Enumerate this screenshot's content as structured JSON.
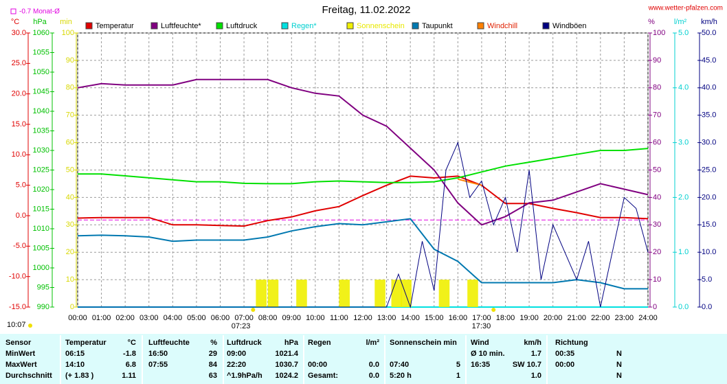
{
  "chart_data": {
    "type": "line",
    "title": "Freitag, 11.02.2022",
    "site": "www.wetter-pfalzen.com",
    "update_time": "10:07",
    "reference": {
      "label": "-0.7 Monat-Ø",
      "value": -0.7,
      "axis": "temp",
      "color": "#e000e0"
    },
    "sunrise": {
      "value": 7.383,
      "label": "07:23"
    },
    "sunset": {
      "value": 17.5,
      "label": "17:30"
    },
    "grid": true,
    "xlim": [
      0,
      24
    ],
    "xticks": [
      {
        "value": 0,
        "label": "00:00"
      },
      {
        "value": 1,
        "label": "01:00"
      },
      {
        "value": 2,
        "label": "02:00"
      },
      {
        "value": 3,
        "label": "03:00"
      },
      {
        "value": 4,
        "label": "04:00"
      },
      {
        "value": 5,
        "label": "05:00"
      },
      {
        "value": 6,
        "label": "06:00"
      },
      {
        "value": 7,
        "label": "07:00"
      },
      {
        "value": 8,
        "label": "08:00"
      },
      {
        "value": 9,
        "label": "09:00"
      },
      {
        "value": 10,
        "label": "10:00"
      },
      {
        "value": 11,
        "label": "11:00"
      },
      {
        "value": 12,
        "label": "12:00"
      },
      {
        "value": 13,
        "label": "13:00"
      },
      {
        "value": 14,
        "label": "14:00"
      },
      {
        "value": 15,
        "label": "15:00"
      },
      {
        "value": 16,
        "label": "16:00"
      },
      {
        "value": 17,
        "label": "17:00"
      },
      {
        "value": 18,
        "label": "18:00"
      },
      {
        "value": 19,
        "label": "19:00"
      },
      {
        "value": 20,
        "label": "20:00"
      },
      {
        "value": 21,
        "label": "21:00"
      },
      {
        "value": 22,
        "label": "22:00"
      },
      {
        "value": 23,
        "label": "23:00"
      },
      {
        "value": 24,
        "label": "24:00"
      }
    ],
    "axes": {
      "temp": {
        "unit": "°C",
        "color": "#e00000",
        "lim": [
          -15,
          30
        ],
        "ticks": [
          {
            "value": 30,
            "label": "30.0"
          },
          {
            "value": 25,
            "label": "25.0"
          },
          {
            "value": 20,
            "label": "20.0"
          },
          {
            "value": 15,
            "label": "15.0"
          },
          {
            "value": 10,
            "label": "10.0"
          },
          {
            "value": 5,
            "label": "5.0"
          },
          {
            "value": 0,
            "label": "0.0"
          },
          {
            "value": -5,
            "label": "-5.0"
          },
          {
            "value": -10,
            "label": "-10.0"
          },
          {
            "value": -15,
            "label": "-15.0"
          }
        ]
      },
      "pressure": {
        "unit": "hPa",
        "color": "#00c000",
        "lim": [
          990,
          1060
        ],
        "ticks": [
          1060,
          1055,
          1050,
          1045,
          1040,
          1035,
          1030,
          1025,
          1020,
          1015,
          1010,
          1005,
          1000,
          995,
          990
        ]
      },
      "sun": {
        "unit": "min",
        "color": "#d8d800",
        "lim": [
          0,
          100
        ],
        "ticks": [
          100,
          90,
          80,
          70,
          60,
          50,
          40,
          30,
          20,
          10,
          0
        ]
      },
      "humidity": {
        "unit": "%",
        "color": "#800080",
        "lim": [
          0,
          100
        ],
        "ticks": [
          100,
          90,
          80,
          70,
          60,
          50,
          40,
          30,
          20,
          10,
          0
        ]
      },
      "rain": {
        "unit": "l/m²",
        "color": "#00d0d0",
        "lim": [
          0,
          5
        ],
        "ticks": [
          {
            "value": 5,
            "label": "5.0"
          },
          {
            "value": 4,
            "label": "4.0"
          },
          {
            "value": 3,
            "label": "3.0"
          },
          {
            "value": 2,
            "label": "2.0"
          },
          {
            "value": 1,
            "label": "1.0"
          },
          {
            "value": 0,
            "label": "0.0"
          }
        ]
      },
      "wind": {
        "unit": "km/h",
        "color": "#000080",
        "lim": [
          0,
          50
        ],
        "ticks": [
          {
            "value": 50,
            "label": "50.0"
          },
          {
            "value": 45,
            "label": "45.0"
          },
          {
            "value": 40,
            "label": "40.0"
          },
          {
            "value": 35,
            "label": "35.0"
          },
          {
            "value": 30,
            "label": "30.0"
          },
          {
            "value": 25,
            "label": "25.0"
          },
          {
            "value": 20,
            "label": "20.0"
          },
          {
            "value": 15,
            "label": "15.0"
          },
          {
            "value": 10,
            "label": "10.0"
          },
          {
            "value": 5,
            "label": "5.0"
          },
          {
            "value": 0,
            "label": "0.0"
          }
        ]
      }
    },
    "series": [
      {
        "name": "Temperatur",
        "color": "#e00000",
        "axis": "temp",
        "type": "line",
        "x": [
          0,
          1,
          2,
          3,
          4,
          5,
          6,
          7,
          8,
          9,
          10,
          11,
          12,
          13,
          14,
          15,
          16,
          17,
          18,
          19,
          20,
          21,
          22,
          23,
          24
        ],
        "values": [
          -0.4,
          -0.3,
          -0.3,
          -0.3,
          -1.5,
          -1.5,
          -1.6,
          -1.7,
          -0.8,
          -0.2,
          0.8,
          1.5,
          3.3,
          5.0,
          6.5,
          6.2,
          6.5,
          5.0,
          2.0,
          2.0,
          1.2,
          0.5,
          -0.3,
          -0.3,
          -0.5
        ]
      },
      {
        "name": "Luftfeuchte*",
        "color": "#800080",
        "axis": "humidity",
        "type": "line",
        "x": [
          0,
          1,
          2,
          3,
          4,
          5,
          6,
          7,
          8,
          9,
          10,
          11,
          12,
          13,
          14,
          15,
          16,
          17,
          18,
          19,
          20,
          21,
          22,
          23,
          24
        ],
        "values": [
          80,
          81.5,
          81,
          81,
          81,
          83,
          83,
          83,
          83,
          80,
          78,
          77,
          70,
          66,
          58,
          50,
          38,
          30,
          33,
          38,
          39,
          42,
          45,
          43,
          41
        ]
      },
      {
        "name": "Luftdruck",
        "color": "#00e000",
        "axis": "pressure",
        "type": "line",
        "x": [
          0,
          1,
          2,
          3,
          4,
          5,
          6,
          7,
          8,
          9,
          10,
          11,
          12,
          13,
          14,
          15,
          16,
          17,
          18,
          19,
          20,
          21,
          22,
          23,
          24
        ],
        "values": [
          1024,
          1024,
          1023.5,
          1023,
          1022.5,
          1022,
          1022,
          1021.6,
          1021.5,
          1021.5,
          1022,
          1022.2,
          1022,
          1021.8,
          1021.8,
          1022,
          1023,
          1024.5,
          1026,
          1027,
          1028,
          1029,
          1030,
          1030,
          1030.5
        ]
      },
      {
        "name": "Regen*",
        "color": "#00e0e0",
        "axis": "rain",
        "type": "line",
        "x": [
          0,
          24
        ],
        "values": [
          0,
          0
        ]
      },
      {
        "name": "Sonnenschein",
        "color": "#f0f000",
        "axis": "sun",
        "type": "bar",
        "x": [
          7.5,
          8,
          9.2,
          11,
          12.5,
          13.2,
          13.6,
          15.2,
          16.4
        ],
        "values": [
          10,
          10,
          10,
          10,
          10,
          10,
          10,
          10,
          10
        ]
      },
      {
        "name": "Taupunkt",
        "color": "#0078b0",
        "axis": "temp",
        "type": "line",
        "x": [
          0,
          1,
          2,
          3,
          4,
          5,
          6,
          7,
          8,
          9,
          10,
          11,
          12,
          13,
          14,
          15,
          16,
          17,
          18,
          19,
          20,
          21,
          22,
          23,
          24
        ],
        "values": [
          -3.3,
          -3.2,
          -3.3,
          -3.5,
          -4.2,
          -4.0,
          -4.0,
          -4.0,
          -3.5,
          -2.5,
          -1.8,
          -1.3,
          -1.5,
          -1.0,
          -0.5,
          -5.5,
          -7.5,
          -11,
          -11,
          -11,
          -11,
          -10.5,
          -11,
          -12,
          -12
        ]
      },
      {
        "name": "Windchill",
        "color": "#ff8000",
        "axis": "temp",
        "type": "line",
        "x": [
          0,
          1,
          2,
          3,
          4,
          5,
          6,
          7,
          8,
          9,
          10,
          11,
          12,
          13,
          14,
          15,
          16,
          17,
          18,
          19,
          20,
          21,
          22,
          23,
          24
        ],
        "values": [
          null,
          null,
          null,
          null,
          null,
          null,
          null,
          null,
          null,
          null,
          null,
          null,
          null,
          null,
          null,
          null,
          6,
          5,
          null,
          null,
          null,
          null,
          null,
          null,
          null
        ]
      },
      {
        "name": "Windböen",
        "color": "#000080",
        "axis": "wind",
        "type": "line",
        "x": [
          0,
          13,
          13.5,
          14,
          14.5,
          15,
          15.5,
          16,
          16.5,
          17,
          17.5,
          18,
          18.5,
          19,
          19.5,
          20,
          20.5,
          21,
          21.5,
          22,
          22.5,
          23,
          23.5,
          24
        ],
        "values": [
          0,
          0,
          6,
          0,
          12,
          3,
          25,
          30,
          20,
          23,
          15,
          20,
          10,
          25,
          5,
          15,
          10,
          5,
          12,
          0,
          10,
          20,
          18,
          10
        ]
      }
    ]
  },
  "table": {
    "header": [
      "Sensor",
      "Temperatur",
      "°C",
      "Luftfeuchte",
      "%",
      "Luftdruck",
      "hPa",
      "Regen",
      "l/m²",
      "Sonnenschein min",
      null,
      "Wind",
      "km/h",
      "Richtung",
      null
    ],
    "rows": [
      [
        "MinWert",
        "06:15",
        "-1.8",
        "16:50",
        "29",
        "09:00",
        "1021.4",
        null,
        null,
        null,
        null,
        "Ø 10 min.",
        "1.7",
        "00:35",
        "N"
      ],
      [
        "MaxWert",
        "14:10",
        "6.8",
        "07:55",
        "84",
        "22:20",
        "1030.7",
        "00:00",
        "0.0",
        "07:40",
        "5",
        "16:35",
        "SW 10.7",
        "00:00",
        "N"
      ],
      [
        "Durchschnitt",
        "(+ 1.83 )",
        "1.11",
        null,
        "63",
        "^1.9hPa/h",
        "1024.2",
        "Gesamt:",
        "0.0",
        "5:20 h",
        "1",
        null,
        "1.0",
        null,
        "N"
      ]
    ]
  }
}
